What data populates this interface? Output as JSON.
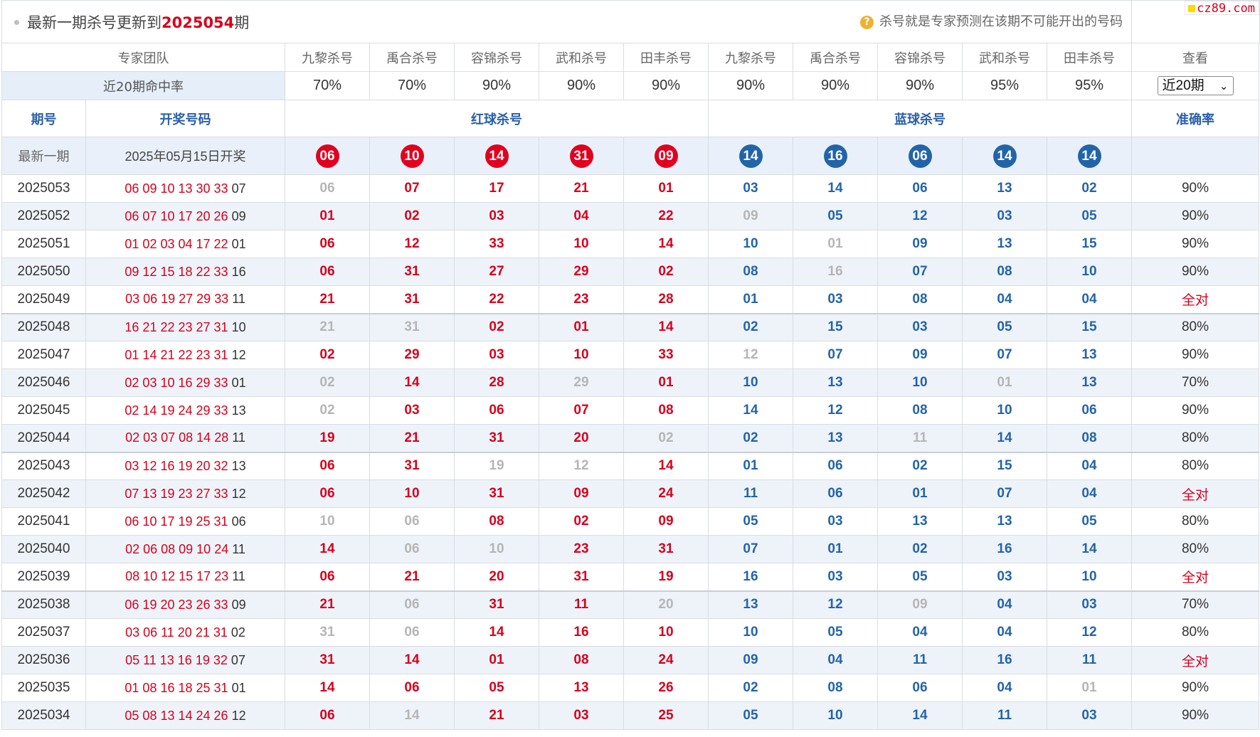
{
  "header": {
    "update_prefix": "最新一期杀号更新到",
    "update_period": "2025054",
    "update_suffix": "期",
    "note_icon": "question-circle-icon",
    "note": "杀号就是专家预测在该期不可能开出的号码",
    "logo": "cz89.com"
  },
  "team_row": {
    "label": "专家团队",
    "experts": [
      "九黎杀号",
      "禹合杀号",
      "容锦杀号",
      "武和杀号",
      "田丰杀号",
      "九黎杀号",
      "禹合杀号",
      "容锦杀号",
      "武和杀号",
      "田丰杀号"
    ],
    "view_label": "查看"
  },
  "rate_row": {
    "label": "近20期命中率",
    "rates": [
      "70%",
      "70%",
      "90%",
      "90%",
      "90%",
      "90%",
      "90%",
      "90%",
      "95%",
      "95%"
    ],
    "select_value": "近20期"
  },
  "section_row": {
    "period": "期号",
    "draw": "开奖号码",
    "red": "红球杀号",
    "blue": "蓝球杀号",
    "accuracy": "准确率"
  },
  "latest_row": {
    "label": "最新一期",
    "date": "2025年05月15日开奖",
    "red": [
      "06",
      "10",
      "14",
      "31",
      "09"
    ],
    "blue": [
      "14",
      "16",
      "06",
      "14",
      "14"
    ]
  },
  "colors": {
    "red": "#e1001e",
    "blue": "#2264a8",
    "miss": "#b5b5b5",
    "header_blue": "#2a5fa8"
  },
  "rows": [
    {
      "period": "2025053",
      "red_draw": "06 09 10 13 30 33",
      "blue_draw": "07",
      "kills": [
        "06",
        "07",
        "17",
        "21",
        "01",
        "03",
        "14",
        "06",
        "13",
        "02"
      ],
      "miss": [
        1,
        0,
        0,
        0,
        0,
        0,
        0,
        0,
        0,
        0
      ],
      "acc": "90%"
    },
    {
      "period": "2025052",
      "red_draw": "06 07 10 17 20 26",
      "blue_draw": "09",
      "kills": [
        "01",
        "02",
        "03",
        "04",
        "22",
        "09",
        "05",
        "12",
        "03",
        "05"
      ],
      "miss": [
        0,
        0,
        0,
        0,
        0,
        1,
        0,
        0,
        0,
        0
      ],
      "acc": "90%"
    },
    {
      "period": "2025051",
      "red_draw": "01 02 03 04 17 22",
      "blue_draw": "01",
      "kills": [
        "06",
        "12",
        "33",
        "10",
        "14",
        "10",
        "01",
        "09",
        "13",
        "15"
      ],
      "miss": [
        0,
        0,
        0,
        0,
        0,
        0,
        1,
        0,
        0,
        0
      ],
      "acc": "90%"
    },
    {
      "period": "2025050",
      "red_draw": "09 12 15 18 22 33",
      "blue_draw": "16",
      "kills": [
        "06",
        "31",
        "27",
        "29",
        "02",
        "08",
        "16",
        "07",
        "08",
        "10"
      ],
      "miss": [
        0,
        0,
        0,
        0,
        0,
        0,
        1,
        0,
        0,
        0
      ],
      "acc": "90%"
    },
    {
      "period": "2025049",
      "red_draw": "03 06 19 27 29 33",
      "blue_draw": "11",
      "kills": [
        "21",
        "31",
        "22",
        "23",
        "28",
        "01",
        "03",
        "08",
        "04",
        "04"
      ],
      "miss": [
        0,
        0,
        0,
        0,
        0,
        0,
        0,
        0,
        0,
        0
      ],
      "acc": "全对"
    },
    {
      "period": "2025048",
      "red_draw": "16 21 22 23 27 31",
      "blue_draw": "10",
      "kills": [
        "21",
        "31",
        "02",
        "01",
        "14",
        "02",
        "15",
        "03",
        "05",
        "15"
      ],
      "miss": [
        1,
        1,
        0,
        0,
        0,
        0,
        0,
        0,
        0,
        0
      ],
      "acc": "80%"
    },
    {
      "period": "2025047",
      "red_draw": "01 14 21 22 23 31",
      "blue_draw": "12",
      "kills": [
        "02",
        "29",
        "03",
        "10",
        "33",
        "12",
        "07",
        "09",
        "07",
        "13"
      ],
      "miss": [
        0,
        0,
        0,
        0,
        0,
        1,
        0,
        0,
        0,
        0
      ],
      "acc": "90%"
    },
    {
      "period": "2025046",
      "red_draw": "02 03 10 16 29 33",
      "blue_draw": "01",
      "kills": [
        "02",
        "14",
        "28",
        "29",
        "01",
        "10",
        "13",
        "10",
        "01",
        "13"
      ],
      "miss": [
        1,
        0,
        0,
        1,
        0,
        0,
        0,
        0,
        1,
        0
      ],
      "acc": "70%"
    },
    {
      "period": "2025045",
      "red_draw": "02 14 19 24 29 33",
      "blue_draw": "13",
      "kills": [
        "02",
        "03",
        "06",
        "07",
        "08",
        "14",
        "12",
        "08",
        "10",
        "06"
      ],
      "miss": [
        1,
        0,
        0,
        0,
        0,
        0,
        0,
        0,
        0,
        0
      ],
      "acc": "90%"
    },
    {
      "period": "2025044",
      "red_draw": "02 03 07 08 14 28",
      "blue_draw": "11",
      "kills": [
        "19",
        "21",
        "31",
        "20",
        "02",
        "02",
        "13",
        "11",
        "14",
        "08"
      ],
      "miss": [
        0,
        0,
        0,
        0,
        1,
        0,
        0,
        1,
        0,
        0
      ],
      "acc": "80%"
    },
    {
      "period": "2025043",
      "red_draw": "03 12 16 19 20 32",
      "blue_draw": "13",
      "kills": [
        "06",
        "31",
        "19",
        "12",
        "14",
        "01",
        "06",
        "02",
        "15",
        "04"
      ],
      "miss": [
        0,
        0,
        1,
        1,
        0,
        0,
        0,
        0,
        0,
        0
      ],
      "acc": "80%"
    },
    {
      "period": "2025042",
      "red_draw": "07 13 19 23 27 33",
      "blue_draw": "12",
      "kills": [
        "06",
        "10",
        "31",
        "09",
        "24",
        "11",
        "06",
        "01",
        "07",
        "04"
      ],
      "miss": [
        0,
        0,
        0,
        0,
        0,
        0,
        0,
        0,
        0,
        0
      ],
      "acc": "全对"
    },
    {
      "period": "2025041",
      "red_draw": "06 10 17 19 25 31",
      "blue_draw": "06",
      "kills": [
        "10",
        "06",
        "08",
        "02",
        "09",
        "05",
        "03",
        "13",
        "13",
        "05"
      ],
      "miss": [
        1,
        1,
        0,
        0,
        0,
        0,
        0,
        0,
        0,
        0
      ],
      "acc": "80%"
    },
    {
      "period": "2025040",
      "red_draw": "02 06 08 09 10 24",
      "blue_draw": "11",
      "kills": [
        "14",
        "06",
        "10",
        "23",
        "31",
        "07",
        "01",
        "02",
        "16",
        "14"
      ],
      "miss": [
        0,
        1,
        1,
        0,
        0,
        0,
        0,
        0,
        0,
        0
      ],
      "acc": "80%"
    },
    {
      "period": "2025039",
      "red_draw": "08 10 12 15 17 23",
      "blue_draw": "11",
      "kills": [
        "06",
        "21",
        "20",
        "31",
        "19",
        "16",
        "03",
        "05",
        "03",
        "10"
      ],
      "miss": [
        0,
        0,
        0,
        0,
        0,
        0,
        0,
        0,
        0,
        0
      ],
      "acc": "全对"
    },
    {
      "period": "2025038",
      "red_draw": "06 19 20 23 26 33",
      "blue_draw": "09",
      "kills": [
        "21",
        "06",
        "31",
        "11",
        "20",
        "13",
        "12",
        "09",
        "04",
        "03"
      ],
      "miss": [
        0,
        1,
        0,
        0,
        1,
        0,
        0,
        1,
        0,
        0
      ],
      "acc": "70%"
    },
    {
      "period": "2025037",
      "red_draw": "03 06 11 20 21 31",
      "blue_draw": "02",
      "kills": [
        "31",
        "06",
        "14",
        "16",
        "10",
        "10",
        "05",
        "04",
        "04",
        "12"
      ],
      "miss": [
        1,
        1,
        0,
        0,
        0,
        0,
        0,
        0,
        0,
        0
      ],
      "acc": "80%"
    },
    {
      "period": "2025036",
      "red_draw": "05 11 13 16 19 32",
      "blue_draw": "07",
      "kills": [
        "31",
        "14",
        "01",
        "08",
        "24",
        "09",
        "04",
        "11",
        "16",
        "11"
      ],
      "miss": [
        0,
        0,
        0,
        0,
        0,
        0,
        0,
        0,
        0,
        0
      ],
      "acc": "全对"
    },
    {
      "period": "2025035",
      "red_draw": "01 08 16 18 25 31",
      "blue_draw": "01",
      "kills": [
        "14",
        "06",
        "05",
        "13",
        "26",
        "02",
        "08",
        "06",
        "04",
        "01"
      ],
      "miss": [
        0,
        0,
        0,
        0,
        0,
        0,
        0,
        0,
        0,
        1
      ],
      "acc": "90%"
    },
    {
      "period": "2025034",
      "red_draw": "05 08 13 14 24 26",
      "blue_draw": "12",
      "kills": [
        "06",
        "14",
        "21",
        "03",
        "25",
        "05",
        "10",
        "14",
        "11",
        "03"
      ],
      "miss": [
        0,
        1,
        0,
        0,
        0,
        0,
        0,
        0,
        0,
        0
      ],
      "acc": "90%"
    }
  ]
}
